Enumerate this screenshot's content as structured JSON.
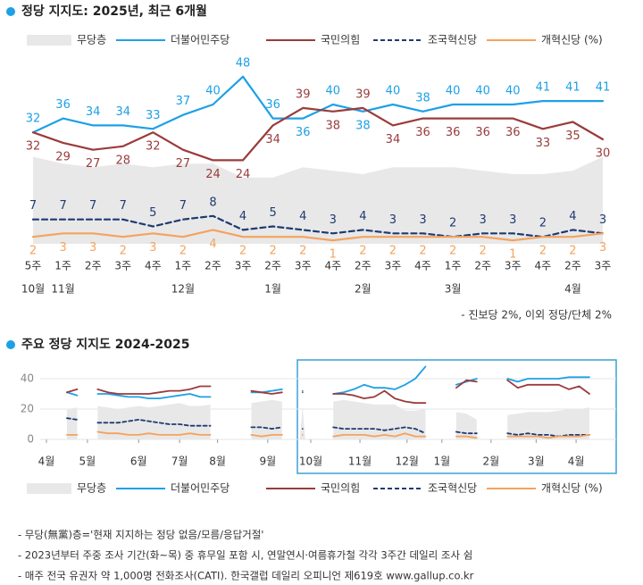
{
  "chart_data": [
    {
      "type": "line",
      "title": "정당 지지도: 2025년, 최근 6개월",
      "legend": "top",
      "categories": [
        "5주",
        "1주",
        "2주",
        "3주",
        "4주",
        "1주",
        "2주",
        "3주",
        "2주",
        "3주",
        "4주",
        "2주",
        "3주",
        "4주",
        "1주",
        "2주",
        "3주",
        "4주",
        "2주",
        "3주"
      ],
      "months": [
        "10월",
        "11월",
        null,
        null,
        null,
        "12월",
        null,
        null,
        "1월",
        null,
        null,
        "2월",
        null,
        null,
        "3월",
        null,
        null,
        null,
        "4월",
        null
      ],
      "ylim": [
        0,
        50
      ],
      "annotation": "- 진보당 2%, 이외 정당/단체 2%",
      "series": [
        {
          "name": "무당층",
          "kind": "area",
          "color": "#e8e8e8",
          "values": [
            25,
            23,
            22,
            23,
            22,
            23,
            23,
            19,
            19,
            22,
            21,
            20,
            22,
            22,
            22,
            21,
            20,
            20,
            21,
            25
          ]
        },
        {
          "name": "더불어민주당",
          "color": "#1ea0e6",
          "values": [
            32,
            36,
            34,
            34,
            33,
            37,
            40,
            48,
            36,
            36,
            40,
            38,
            40,
            38,
            40,
            40,
            40,
            41,
            41,
            41
          ]
        },
        {
          "name": "국민의힘",
          "color": "#9b3b3b",
          "values": [
            32,
            29,
            27,
            28,
            32,
            27,
            24,
            24,
            34,
            39,
            38,
            39,
            34,
            36,
            36,
            36,
            36,
            33,
            35,
            30
          ]
        },
        {
          "name": "조국혁신당",
          "color": "#1f3a73",
          "style": "dashed",
          "values": [
            7,
            7,
            7,
            7,
            5,
            7,
            8,
            4,
            5,
            4,
            3,
            4,
            3,
            3,
            2,
            3,
            3,
            2,
            4,
            3
          ]
        },
        {
          "name": "개혁신당 (%)",
          "color": "#f5a25d",
          "values": [
            2,
            3,
            3,
            2,
            3,
            2,
            4,
            2,
            2,
            2,
            1,
            2,
            2,
            2,
            2,
            2,
            1,
            2,
            2,
            3
          ]
        }
      ]
    },
    {
      "type": "line",
      "title": "주요 정당 지지도 2024-2025",
      "legend": "bottom",
      "x": [
        2,
        3,
        4,
        5,
        6,
        7,
        8,
        9,
        10,
        11,
        12,
        13,
        14,
        15,
        16,
        17,
        18,
        19,
        20,
        21,
        22,
        23,
        24,
        25,
        26,
        27,
        28,
        29,
        30,
        31,
        32,
        33,
        34,
        35,
        36,
        37,
        38,
        39,
        40,
        41,
        42,
        43,
        44,
        45,
        46,
        47,
        48,
        49,
        50,
        51,
        52,
        53
      ],
      "xlim": [
        0,
        53
      ],
      "xticks": [
        {
          "value": 0,
          "label": "4월"
        },
        {
          "value": 4.0,
          "label": "5월"
        },
        {
          "value": 9.0,
          "label": "6월"
        },
        {
          "value": 13.0,
          "label": "7월"
        },
        {
          "value": 16.7,
          "label": "8월"
        },
        {
          "value": 21.6,
          "label": "9월"
        },
        {
          "value": 25.8,
          "label": "10월"
        },
        {
          "value": 30.6,
          "label": "11월"
        },
        {
          "value": 35.2,
          "label": "12월"
        },
        {
          "value": 38.6,
          "label": "1월"
        },
        {
          "value": 43.4,
          "label": "2월"
        },
        {
          "value": 47.8,
          "label": "3월"
        },
        {
          "value": 51.7,
          "label": "4월"
        }
      ],
      "ylim": [
        0,
        50
      ],
      "yticks": [
        0,
        20,
        40
      ],
      "grid": true,
      "series": [
        {
          "name": "무당층",
          "kind": "area",
          "color": "#e8e8e8",
          "values": [
            20,
            21,
            null,
            22,
            21,
            20,
            21,
            22,
            21,
            22,
            23,
            24,
            22,
            22,
            23,
            null,
            null,
            null,
            24,
            25,
            26,
            25,
            null,
            22,
            null,
            null,
            25,
            26,
            25,
            24,
            23,
            23,
            23,
            19,
            19,
            20,
            null,
            null,
            18,
            17,
            13,
            null,
            null,
            16,
            17,
            18,
            18,
            18,
            19,
            20,
            20,
            21
          ]
        },
        {
          "name": "더불어민주당",
          "color": "#1ea0e6",
          "values": [
            31,
            29,
            null,
            30,
            30,
            29,
            28,
            28,
            27,
            27,
            28,
            29,
            30,
            28,
            28,
            null,
            null,
            null,
            31,
            31,
            32,
            33,
            null,
            32,
            null,
            null,
            30,
            31,
            33,
            36,
            34,
            34,
            33,
            36,
            40,
            48,
            null,
            null,
            36,
            38,
            40,
            null,
            null,
            40,
            38,
            40,
            40,
            40,
            40,
            41,
            41,
            41
          ]
        },
        {
          "name": "국민의힘",
          "color": "#9b3b3b",
          "values": [
            31,
            33,
            null,
            33,
            31,
            30,
            30,
            30,
            30,
            31,
            32,
            32,
            33,
            35,
            35,
            null,
            null,
            null,
            32,
            31,
            30,
            31,
            null,
            31,
            null,
            null,
            30,
            30,
            29,
            27,
            28,
            32,
            27,
            25,
            24,
            24,
            null,
            null,
            34,
            39,
            38,
            null,
            null,
            39,
            34,
            36,
            36,
            36,
            36,
            33,
            35,
            30
          ]
        },
        {
          "name": "조국혁신당",
          "color": "#1f3a73",
          "style": "dashed",
          "values": [
            14,
            13,
            null,
            11,
            11,
            11,
            12,
            13,
            12,
            11,
            10,
            10,
            9,
            9,
            9,
            null,
            null,
            null,
            8,
            8,
            7,
            8,
            null,
            7,
            null,
            null,
            8,
            7,
            7,
            7,
            7,
            6,
            7,
            8,
            7,
            4,
            null,
            null,
            5,
            4,
            4,
            null,
            null,
            4,
            3,
            4,
            3,
            3,
            2,
            3,
            3,
            3
          ]
        },
        {
          "name": "개혁신당 (%)",
          "color": "#f5a25d",
          "values": [
            3,
            3,
            null,
            5,
            4,
            4,
            3,
            3,
            4,
            3,
            3,
            3,
            4,
            3,
            3,
            null,
            null,
            null,
            3,
            2,
            3,
            3,
            null,
            3,
            null,
            null,
            2,
            3,
            3,
            3,
            2,
            3,
            2,
            4,
            2,
            2,
            null,
            null,
            2,
            2,
            1,
            null,
            null,
            2,
            2,
            2,
            2,
            1,
            2,
            2,
            2,
            3
          ]
        }
      ]
    }
  ],
  "notes": [
    "- 무당(無黨)층='현재 지지하는 정당 없음/모름/응답거절'",
    "- 2023년부터 주중 조사 기간(화~목) 중 휴무일 포함 시, 연말연시·여름휴가철 각각 3주간 데일리 조사 쉼",
    "- 매주 전국 유권자 약 1,000명 전화조사(CATI). 한국갤럽 데일리 오피니언 제619호 www.gallup.co.kr"
  ]
}
